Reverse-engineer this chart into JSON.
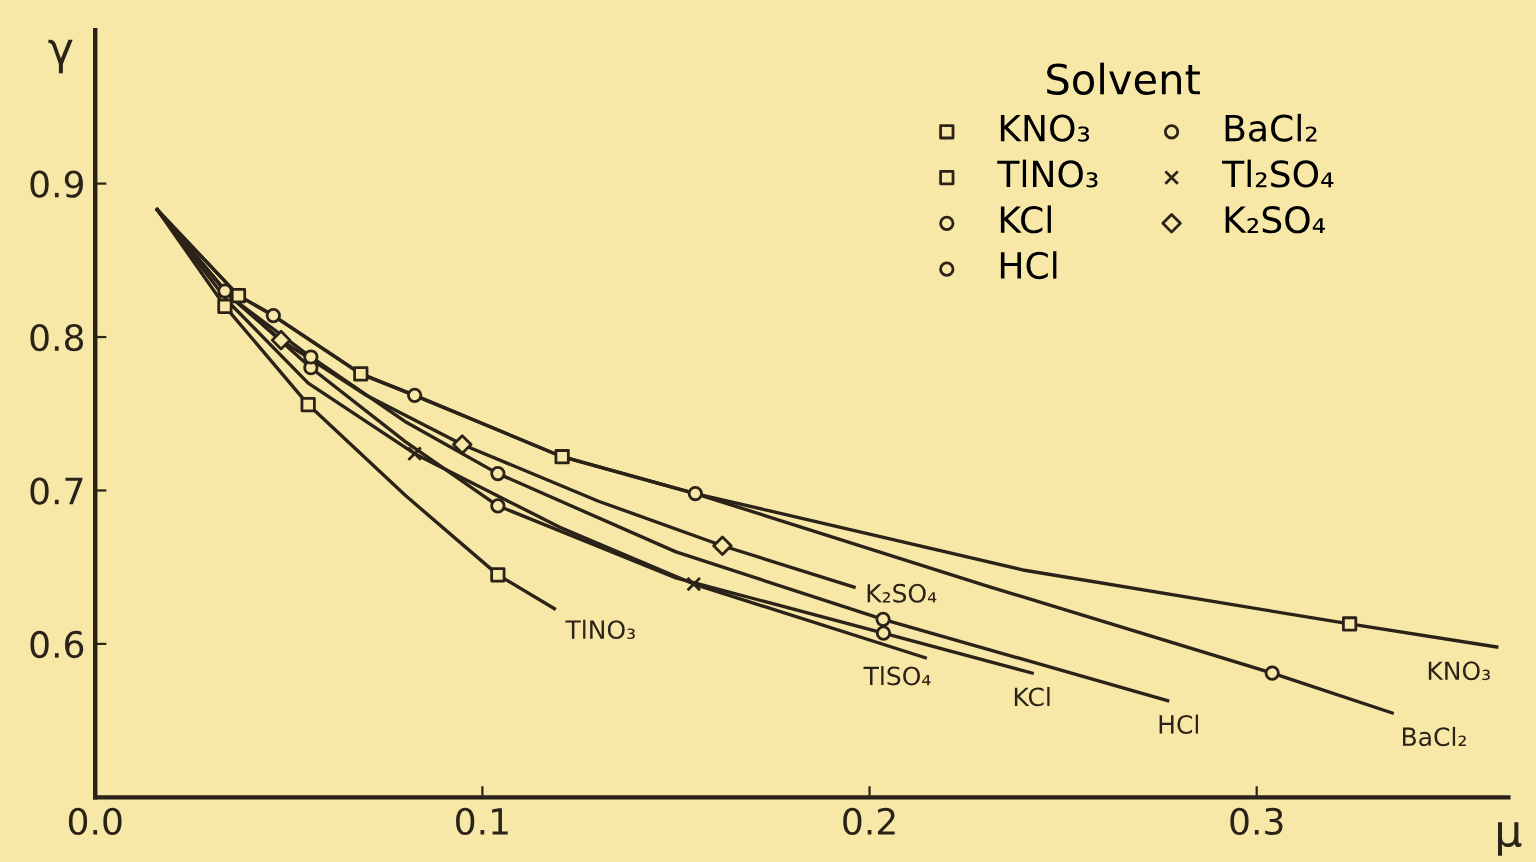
{
  "chart_data": {
    "type": "line",
    "xlabel": "μ",
    "ylabel": "γ",
    "legend_title": "Solvent",
    "legend": "top right",
    "grid": false,
    "xlim": [
      0,
      0.365
    ],
    "ylim": [
      0.5,
      1.0
    ],
    "xticks": [
      {
        "value": 0,
        "label": "0.0"
      },
      0.1,
      0.2,
      0.3
    ],
    "yticks": [
      0.6,
      0.7,
      0.8,
      0.9
    ],
    "series": [
      {
        "color": "#2b2218",
        "marker": "none",
        "x": [
          0.016,
          0.037,
          0.046,
          0.0686,
          0.0825,
          0.1206,
          0.155,
          0.24,
          0.324,
          0.362
        ],
        "values": [
          0.883,
          0.827,
          0.814,
          0.776,
          0.762,
          0.722,
          0.698,
          0.648,
          0.613,
          0.598
        ]
      },
      {
        "color": "#2b2218",
        "marker": "none",
        "x": [
          0.016,
          0.0335,
          0.055,
          0.08,
          0.104,
          0.1186
        ],
        "values": [
          0.883,
          0.82,
          0.756,
          0.697,
          0.645,
          0.623
        ]
      },
      {
        "color": "#2b2218",
        "marker": "none",
        "x": [
          0.016,
          0.0335,
          0.0557,
          0.08,
          0.104,
          0.15,
          0.2036,
          0.242
        ],
        "values": [
          0.883,
          0.83,
          0.78,
          0.732,
          0.69,
          0.643,
          0.607,
          0.581
        ]
      },
      {
        "color": "#2b2218",
        "marker": "none",
        "x": [
          0.016,
          0.035,
          0.0557,
          0.08,
          0.104,
          0.15,
          0.2035,
          0.277
        ],
        "values": [
          0.883,
          0.826,
          0.787,
          0.745,
          0.711,
          0.66,
          0.616,
          0.563
        ]
      },
      {
        "color": "#2b2218",
        "marker": "none",
        "x": [
          0.016,
          0.037,
          0.046,
          0.0686,
          0.0825,
          0.1206,
          0.155,
          0.23,
          0.304,
          0.335
        ],
        "values": [
          0.883,
          0.827,
          0.814,
          0.776,
          0.762,
          0.722,
          0.698,
          0.638,
          0.581,
          0.555
        ]
      },
      {
        "color": "#2b2218",
        "marker": "none",
        "x": [
          0.016,
          0.034,
          0.055,
          0.0825,
          0.12,
          0.1546,
          0.2144
        ],
        "values": [
          0.883,
          0.824,
          0.77,
          0.724,
          0.676,
          0.639,
          0.591
        ]
      },
      {
        "color": "#2b2218",
        "marker": "none",
        "x": [
          0.016,
          0.035,
          0.048,
          0.07,
          0.0948,
          0.13,
          0.162,
          0.196
        ],
        "values": [
          0.883,
          0.826,
          0.798,
          0.762,
          0.73,
          0.693,
          0.664,
          0.637
        ]
      },
      {
        "type": "scatter",
        "name": "KNO₃",
        "color": "#2b2218",
        "marker": "square",
        "x": [
          0.037,
          0.0686,
          0.1206,
          0.324
        ],
        "values": [
          0.827,
          0.776,
          0.722,
          0.613
        ]
      },
      {
        "type": "scatter",
        "name": "TlNO₃",
        "color": "#2b2218",
        "marker": "square",
        "x": [
          0.0335,
          0.055,
          0.104
        ],
        "values": [
          0.82,
          0.756,
          0.645
        ]
      },
      {
        "type": "scatter",
        "name": "KCl",
        "color": "#2b2218",
        "marker": "circle",
        "x": [
          0.0335,
          0.0557,
          0.104,
          0.2036
        ],
        "values": [
          0.83,
          0.78,
          0.69,
          0.607
        ]
      },
      {
        "type": "scatter",
        "name": "HCl",
        "color": "#2b2218",
        "marker": "circle",
        "x": [
          0.0557,
          0.104,
          0.2035
        ],
        "values": [
          0.787,
          0.711,
          0.616
        ]
      },
      {
        "type": "scatter",
        "name": "BaCl₂",
        "color": "#2b2218",
        "marker": "circle",
        "x": [
          0.046,
          0.0825,
          0.155,
          0.304
        ],
        "values": [
          0.814,
          0.762,
          0.698,
          0.581
        ]
      },
      {
        "type": "scatter",
        "name": "Tl₂SO₄",
        "color": "#2b2218",
        "marker": "cross",
        "x": [
          0.0825,
          0.1546
        ],
        "values": [
          0.724,
          0.639
        ]
      },
      {
        "type": "scatter",
        "name": "K₂SO₄",
        "color": "#2b2218",
        "marker": "diamond",
        "x": [
          0.048,
          0.0948,
          0.162
        ],
        "values": [
          0.798,
          0.73,
          0.664
        ]
      }
    ],
    "annotations": [
      {
        "text": "TlNO₃",
        "x": 0.1186,
        "y": 0.623
      },
      {
        "text": "K₂SO₄",
        "x": 0.196,
        "y": 0.637
      },
      {
        "text": "TlSO₄",
        "x": 0.2144,
        "y": 0.591
      },
      {
        "text": "KCl",
        "x": 0.242,
        "y": 0.581
      },
      {
        "text": "HCl",
        "x": 0.277,
        "y": 0.563
      },
      {
        "text": "KNO₃",
        "x": 0.362,
        "y": 0.598
      },
      {
        "text": "BaCl₂",
        "x": 0.335,
        "y": 0.555
      }
    ]
  }
}
